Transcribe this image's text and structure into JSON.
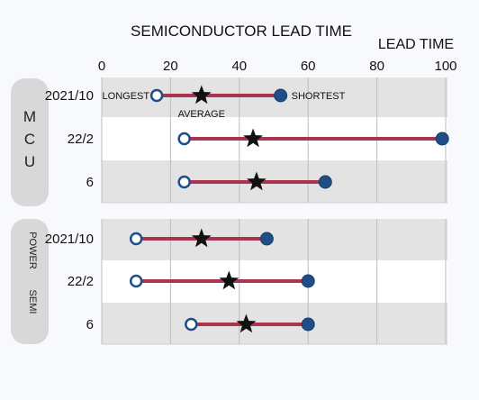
{
  "chart_data": {
    "type": "dot-range",
    "title": "SEMICONDUCTOR LEAD TIME",
    "axis_title": "LEAD TIME",
    "x_ticks": [
      0,
      20,
      40,
      60,
      80,
      100
    ],
    "xlim": [
      0,
      100
    ],
    "grid": true,
    "legend": {
      "longest": "LONGEST",
      "average": "AVERAGE",
      "shortest": "SHORTEST"
    },
    "groups": [
      {
        "label": "M C U",
        "letters": [
          "M",
          "C",
          "U"
        ],
        "rows": [
          {
            "label": "2021/10",
            "open": 16,
            "average": 29,
            "filled": 52
          },
          {
            "label": "22/2",
            "open": 24,
            "average": 44,
            "filled": 99
          },
          {
            "label": "6",
            "open": 24,
            "average": 45,
            "filled": 65
          }
        ]
      },
      {
        "label": "POWER SEMI",
        "words": [
          "POWER",
          "SEMI"
        ],
        "rows": [
          {
            "label": "2021/10",
            "open": 10,
            "average": 29,
            "filled": 48
          },
          {
            "label": "22/2",
            "open": 10,
            "average": 37,
            "filled": 60
          },
          {
            "label": "6",
            "open": 26,
            "average": 42,
            "filled": 60
          }
        ]
      }
    ]
  }
}
